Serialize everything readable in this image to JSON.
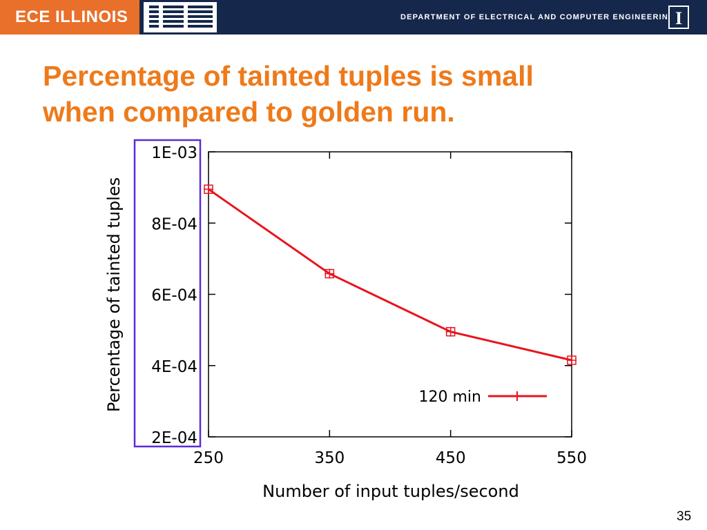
{
  "header": {
    "brand": "ECE ILLINOIS",
    "partner_logo": "IBM",
    "department": "DEPARTMENT OF ELECTRICAL AND COMPUTER ENGINEERING",
    "university_mark": "I",
    "brand_color": "#e8702a",
    "bar_color": "#15284b"
  },
  "slide": {
    "title_line1": "Percentage of tainted tuples is small",
    "title_line2": "when compared to golden run.",
    "title_color": "#ee7a1a",
    "page_number": "35"
  },
  "chart_data": {
    "type": "line",
    "xlabel": "Number of input tuples/second",
    "ylabel": "Percentage of tainted tuples",
    "xlim": [
      250,
      550
    ],
    "ylim": [
      0.0002,
      0.001
    ],
    "xticks": [
      250,
      350,
      450,
      550
    ],
    "xtick_labels": [
      "250",
      "350",
      "450",
      "550"
    ],
    "yticks": [
      0.0002,
      0.0004,
      0.0006,
      0.0008,
      0.001
    ],
    "ytick_labels": [
      "2E-04",
      "4E-04",
      "6E-04",
      "8E-04",
      "1E-03"
    ],
    "grid": false,
    "legend_position": "bottom-right",
    "series": [
      {
        "name": "120 min",
        "color": "#e8141e",
        "x": [
          250,
          350,
          450,
          550
        ],
        "y": [
          0.000895,
          0.000658,
          0.000495,
          0.000415
        ]
      }
    ],
    "annotation_color": "#5a2bd6"
  }
}
